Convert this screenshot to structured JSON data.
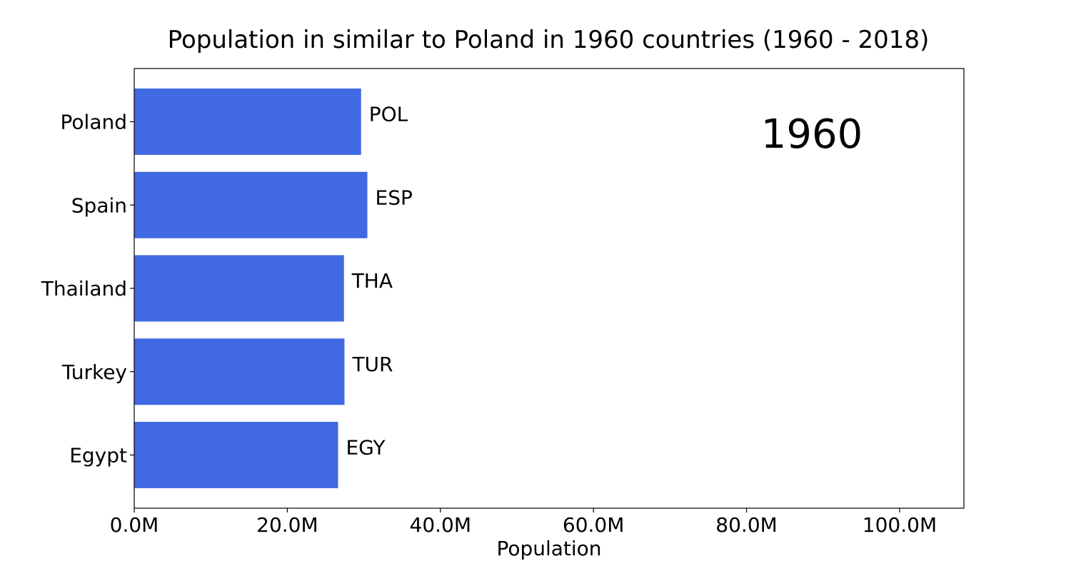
{
  "chart_data": {
    "type": "bar",
    "orientation": "horizontal",
    "title": "Population in similar to Poland in 1960 countries (1960 - 2018)",
    "xlabel": "Population",
    "ylabel": "",
    "xlim": [
      0,
      108400000
    ],
    "x_ticks": [
      0,
      20000000,
      40000000,
      60000000,
      80000000,
      100000000
    ],
    "x_tick_labels": [
      "0.0M",
      "20.0M",
      "40.0M",
      "60.0M",
      "80.0M",
      "100.0M"
    ],
    "categories": [
      "Poland",
      "Spain",
      "Thailand",
      "Turkey",
      "Egypt"
    ],
    "codes": [
      "POL",
      "ESP",
      "THA",
      "TUR",
      "EGY"
    ],
    "values": [
      29640000,
      30460000,
      27400000,
      27470000,
      26630000
    ],
    "year_label": "1960",
    "bar_color": "#4169e1",
    "grid": false,
    "legend": "none"
  }
}
